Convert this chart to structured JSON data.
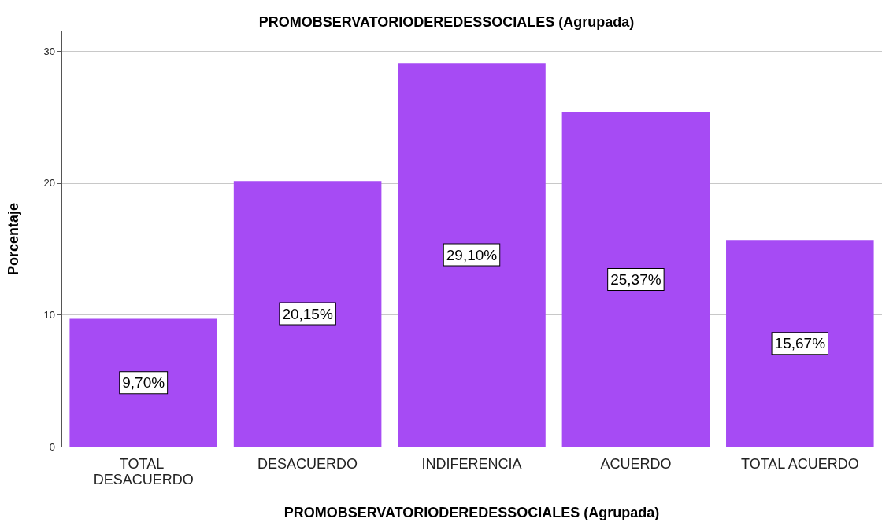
{
  "chart_data": {
    "type": "bar",
    "title": "PROMOBSERVATORIODEREDESSOCIALES (Agrupada)",
    "xlabel": "PROMOBSERVATORIODEREDESSOCIALES (Agrupada)",
    "ylabel": "Porcentaje",
    "categories": [
      "TOTAL DESACUERDO",
      "DESACUERDO",
      "INDIFERENCIA",
      "ACUERDO",
      "TOTAL ACUERDO"
    ],
    "values": [
      9.7,
      20.15,
      29.1,
      25.37,
      15.67
    ],
    "value_labels": [
      "9,70%",
      "20,15%",
      "29,10%",
      "25,37%",
      "15,67%"
    ],
    "color": "#a64bf4",
    "ylim": [
      0,
      31.5
    ],
    "yticks": [
      0,
      10,
      20,
      30
    ],
    "grid": "y"
  }
}
